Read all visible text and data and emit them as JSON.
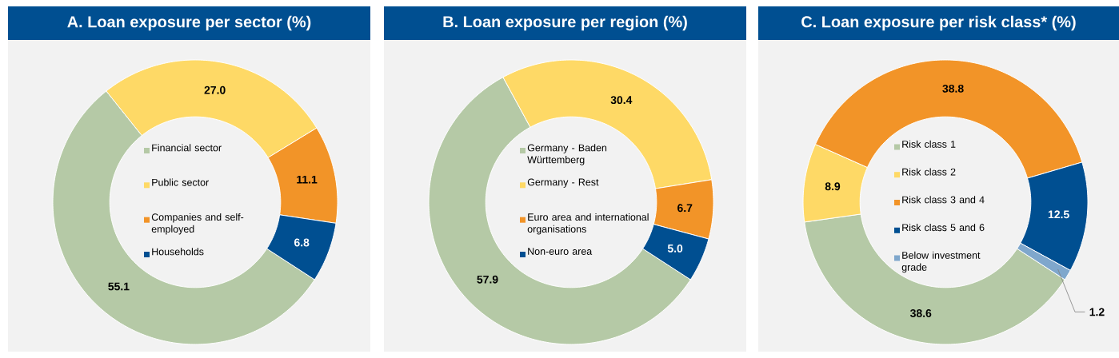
{
  "chart_data": [
    {
      "type": "donut",
      "title": "A. Loan exposure per sector (%)",
      "categories": [
        "Financial sector",
        "Public sector",
        "Companies and self-employed",
        "Households"
      ],
      "values": [
        55.1,
        27.0,
        11.1,
        6.8
      ],
      "value_labels": [
        "55.1",
        "27.0",
        "11.1",
        "6.8"
      ],
      "colors": [
        "#b5c9a6",
        "#fed966",
        "#f29428",
        "#004f91"
      ],
      "legend": "center"
    },
    {
      "type": "donut",
      "title": "B. Loan exposure per region (%)",
      "categories": [
        "Germany - Baden Württemberg",
        "Germany - Rest",
        "Euro area and international organisations",
        "Non-euro area"
      ],
      "values": [
        57.9,
        30.4,
        6.7,
        5.0
      ],
      "value_labels": [
        "57.9",
        "30.4",
        "6.7",
        "5.0"
      ],
      "colors": [
        "#b5c9a6",
        "#fed966",
        "#f29428",
        "#004f91"
      ],
      "legend": "center"
    },
    {
      "type": "donut",
      "title": "C. Loan exposure per risk class* (%)",
      "categories": [
        "Risk class 1",
        "Risk class 2",
        "Risk class 3 and 4",
        "Risk class 5 and 6",
        "Below investment grade"
      ],
      "values": [
        38.6,
        8.9,
        38.8,
        12.5,
        1.2
      ],
      "value_labels": [
        "38.6",
        "8.9",
        "38.8",
        "12.5",
        "1.2"
      ],
      "colors": [
        "#b5c9a6",
        "#fed966",
        "#f29428",
        "#004f91",
        "#7fa7cc"
      ],
      "legend": "center"
    }
  ]
}
